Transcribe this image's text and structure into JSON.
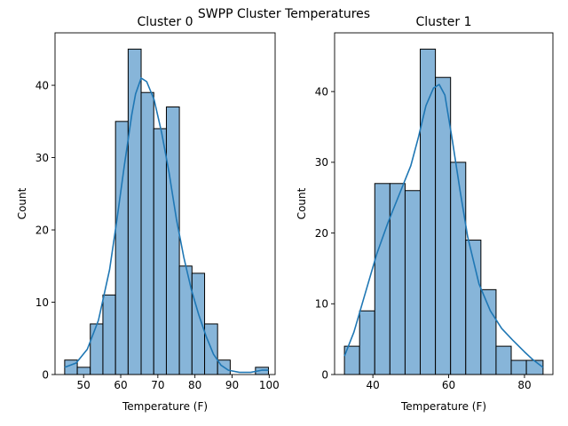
{
  "figure": {
    "suptitle": "SWPP Cluster Temperatures"
  },
  "colors": {
    "bar_fill": "#87b5d9",
    "bar_edge": "#000000",
    "kde_line": "#1f77b4"
  },
  "chart_data": [
    {
      "type": "bar",
      "subtype": "histogram-with-kde",
      "title": "Cluster 0",
      "xlabel": "Temperature (F)",
      "ylabel": "Count",
      "xlim": [
        42.3,
        101.6
      ],
      "ylim": [
        0,
        47.25
      ],
      "xticks": [
        50,
        60,
        70,
        80,
        90,
        100
      ],
      "yticks": [
        0,
        10,
        20,
        30,
        40
      ],
      "bin_edges": [
        44.9,
        48.3,
        51.8,
        55.2,
        58.6,
        62.0,
        65.5,
        68.9,
        72.3,
        75.8,
        79.2,
        82.6,
        86.1,
        89.5,
        92.9,
        96.3,
        99.8
      ],
      "counts": [
        2,
        1,
        7,
        11,
        35,
        45,
        39,
        34,
        37,
        15,
        14,
        7,
        2,
        0,
        0,
        1
      ],
      "kde": {
        "x": [
          44.9,
          48,
          51,
          54,
          57,
          59,
          61,
          63,
          64,
          65.5,
          67,
          69,
          71,
          73,
          75,
          77,
          79,
          81,
          83,
          85,
          87,
          89,
          92,
          95,
          98,
          99.8
        ],
        "y": [
          1.0,
          1.6,
          3.5,
          7.5,
          14.5,
          21.5,
          29.0,
          36.0,
          38.8,
          41.0,
          40.5,
          38.0,
          33.5,
          28.0,
          21.5,
          16.2,
          11.8,
          8.3,
          5.3,
          2.8,
          1.3,
          0.6,
          0.3,
          0.3,
          0.6,
          0.6
        ]
      },
      "grid": false
    },
    {
      "type": "bar",
      "subtype": "histogram-with-kde",
      "title": "Cluster 1",
      "xlabel": "Temperature (F)",
      "ylabel": "Count",
      "xlim": [
        29.9,
        87.5
      ],
      "ylim": [
        0,
        48.3
      ],
      "xticks": [
        40,
        60,
        80
      ],
      "yticks": [
        0,
        10,
        20,
        30,
        40
      ],
      "bin_edges": [
        32.5,
        36.5,
        40.5,
        44.5,
        48.5,
        52.5,
        56.5,
        60.5,
        64.5,
        68.5,
        72.5,
        76.5,
        80.5,
        84.9
      ],
      "counts": [
        4,
        9,
        27,
        27,
        26,
        46,
        42,
        30,
        19,
        12,
        4,
        2,
        2
      ],
      "kde": {
        "x": [
          32.5,
          35,
          38,
          41,
          44,
          47,
          50,
          52,
          54,
          56,
          57.5,
          59,
          61,
          63,
          65,
          68,
          71,
          74,
          77,
          80,
          82,
          84.9
        ],
        "y": [
          2.6,
          6.0,
          11.5,
          17.0,
          21.5,
          25.5,
          29.5,
          33.5,
          38.0,
          40.5,
          41.0,
          39.5,
          33.0,
          26.0,
          19.5,
          12.8,
          9.0,
          6.5,
          4.8,
          3.2,
          2.2,
          1.0
        ]
      },
      "grid": false
    }
  ]
}
